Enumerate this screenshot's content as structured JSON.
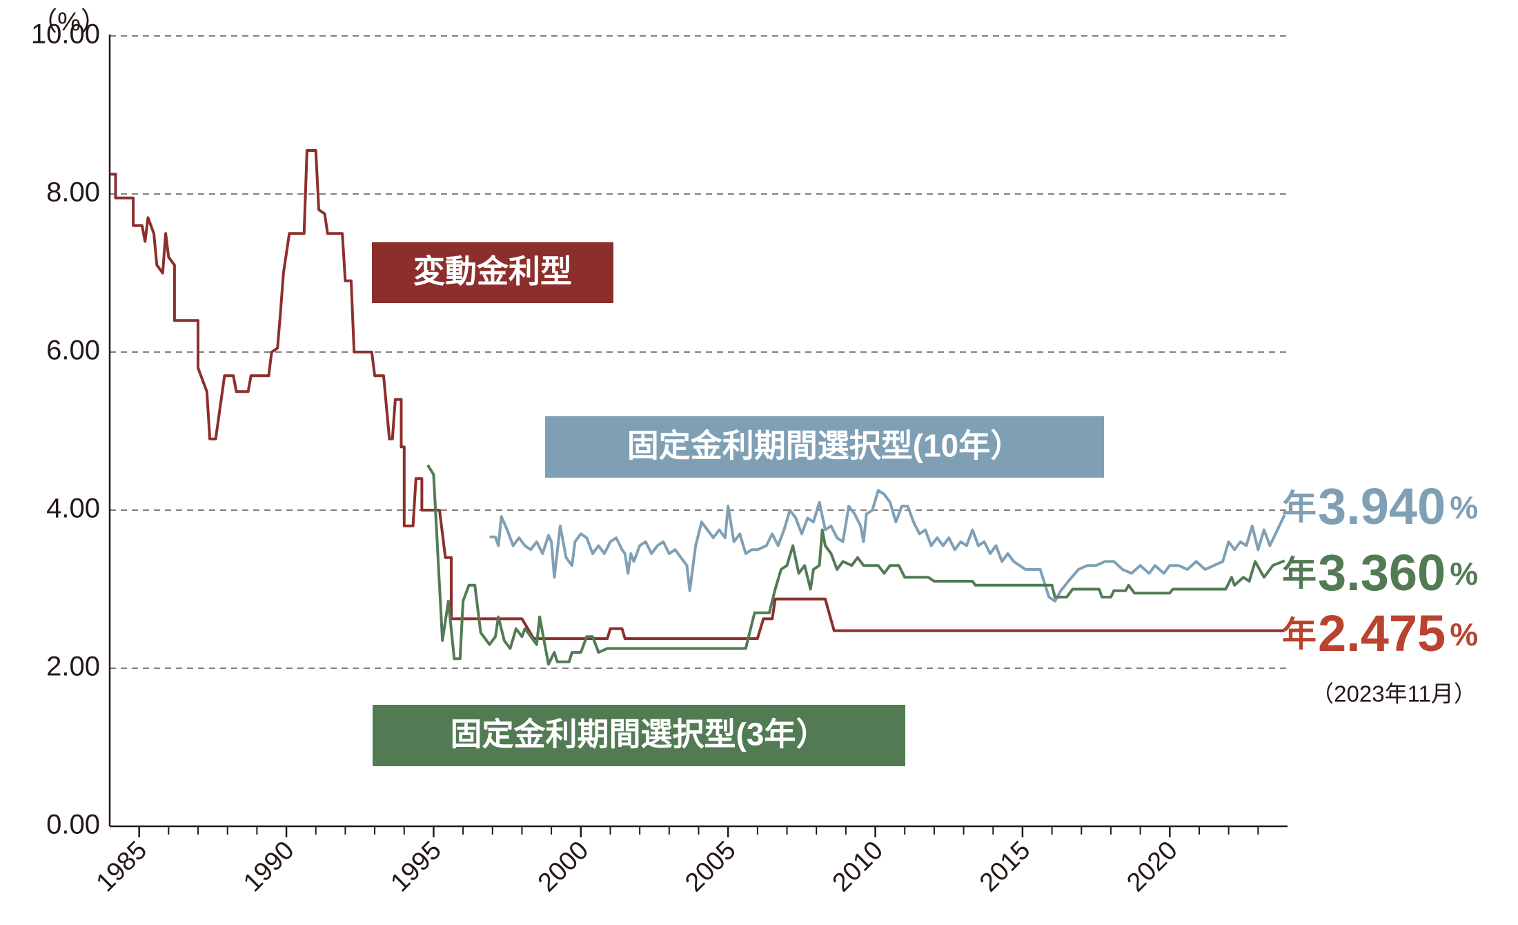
{
  "chart_data": {
    "type": "line",
    "y_unit": "（%）",
    "note": "（2023年11月）",
    "xlim": [
      1984,
      2024
    ],
    "xticks": [
      1985,
      1990,
      1995,
      2000,
      2005,
      2010,
      2015,
      2020
    ],
    "minor_xticks": [
      1985,
      1986,
      1987,
      1988,
      1989,
      1990,
      1991,
      1992,
      1993,
      1994,
      1995,
      1996,
      1997,
      1998,
      1999,
      2000,
      2001,
      2002,
      2003,
      2004,
      2005,
      2006,
      2007,
      2008,
      2009,
      2010,
      2011,
      2012,
      2013,
      2014,
      2015,
      2016,
      2017,
      2018,
      2019,
      2020,
      2021,
      2022,
      2023
    ],
    "ylim": [
      0,
      10
    ],
    "yticks": [
      {
        "value": 0,
        "label": "0.00"
      },
      {
        "value": 2,
        "label": "2.00"
      },
      {
        "value": 4,
        "label": "4.00"
      },
      {
        "value": 6,
        "label": "6.00"
      },
      {
        "value": 8,
        "label": "8.00"
      },
      {
        "value": 10,
        "label": "10.00"
      }
    ],
    "grid": true,
    "series": [
      {
        "name": "変動金利型",
        "color": "#8c2f2b",
        "label_color": "#b9432f",
        "end_label": {
          "prefix": "年",
          "text": "2.475",
          "suffix": "%"
        },
        "x": [
          1984.0,
          1984.2,
          1984.2,
          1984.8,
          1984.8,
          1985.1,
          1985.2,
          1985.3,
          1985.5,
          1985.6,
          1985.8,
          1985.9,
          1986.0,
          1986.2,
          1986.2,
          1987.0,
          1987.0,
          1987.3,
          1987.4,
          1987.6,
          1987.9,
          1988.2,
          1988.3,
          1988.7,
          1988.8,
          1989.4,
          1989.5,
          1989.7,
          1989.8,
          1989.9,
          1990.1,
          1990.6,
          1990.7,
          1991.0,
          1991.1,
          1991.3,
          1991.4,
          1991.9,
          1992.0,
          1992.2,
          1992.3,
          1992.9,
          1993.0,
          1993.3,
          1993.5,
          1993.6,
          1993.7,
          1993.9,
          1993.9,
          1994.0,
          1994.0,
          1994.3,
          1994.4,
          1994.6,
          1994.6,
          1995.2,
          1995.4,
          1995.6,
          1995.6,
          1998.0,
          1998.2,
          1998.4,
          2000.9,
          2001.0,
          2001.4,
          2001.5,
          2006.0,
          2006.2,
          2006.5,
          2006.6,
          2008.3,
          2008.6,
          2023.9
        ],
        "values": [
          8.25,
          8.25,
          7.95,
          7.95,
          7.6,
          7.6,
          7.4,
          7.7,
          7.5,
          7.1,
          7.0,
          7.5,
          7.2,
          7.1,
          6.4,
          6.4,
          5.8,
          5.5,
          4.9,
          4.9,
          5.7,
          5.7,
          5.5,
          5.5,
          5.7,
          5.7,
          6.0,
          6.05,
          6.5,
          7.0,
          7.5,
          7.5,
          8.55,
          8.55,
          7.8,
          7.75,
          7.5,
          7.5,
          6.9,
          6.9,
          6.0,
          6.0,
          5.7,
          5.7,
          4.9,
          4.9,
          5.4,
          5.4,
          4.8,
          4.8,
          3.8,
          3.8,
          4.4,
          4.4,
          4.0,
          4.0,
          3.4,
          3.4,
          2.625,
          2.625,
          2.5,
          2.375,
          2.375,
          2.5,
          2.5,
          2.375,
          2.375,
          2.625,
          2.625,
          2.875,
          2.875,
          2.475,
          2.475
        ]
      },
      {
        "name": "固定金利期間選択型(10年）",
        "color": "#7f9fb5",
        "label_color": "#7f9fb5",
        "end_label": {
          "prefix": "年",
          "text": "3.940",
          "suffix": "%"
        },
        "x": [
          1996.9,
          1997.1,
          1997.2,
          1997.3,
          1997.5,
          1997.7,
          1997.9,
          1998.1,
          1998.3,
          1998.5,
          1998.7,
          1998.9,
          1999.0,
          1999.1,
          1999.3,
          1999.5,
          1999.7,
          1999.8,
          2000.0,
          2000.2,
          2000.4,
          2000.6,
          2000.8,
          2001.0,
          2001.2,
          2001.4,
          2001.5,
          2001.6,
          2001.7,
          2001.8,
          2002.0,
          2002.2,
          2002.4,
          2002.6,
          2002.8,
          2003.0,
          2003.2,
          2003.4,
          2003.6,
          2003.7,
          2003.9,
          2004.1,
          2004.3,
          2004.5,
          2004.7,
          2004.9,
          2005.0,
          2005.2,
          2005.4,
          2005.6,
          2005.8,
          2006.0,
          2006.3,
          2006.5,
          2006.7,
          2006.9,
          2007.1,
          2007.3,
          2007.5,
          2007.7,
          2007.9,
          2008.1,
          2008.3,
          2008.5,
          2008.7,
          2008.9,
          2009.1,
          2009.3,
          2009.5,
          2009.6,
          2009.7,
          2009.9,
          2010.1,
          2010.3,
          2010.5,
          2010.7,
          2010.9,
          2011.1,
          2011.3,
          2011.5,
          2011.7,
          2011.9,
          2012.1,
          2012.3,
          2012.5,
          2012.7,
          2012.9,
          2013.1,
          2013.3,
          2013.5,
          2013.7,
          2013.9,
          2014.1,
          2014.3,
          2014.5,
          2014.7,
          2014.9,
          2015.1,
          2015.3,
          2015.6,
          2015.9,
          2016.1,
          2016.3,
          2016.6,
          2016.9,
          2017.2,
          2017.5,
          2017.8,
          2018.1,
          2018.4,
          2018.7,
          2019.0,
          2019.3,
          2019.5,
          2019.8,
          2020.0,
          2020.3,
          2020.6,
          2020.9,
          2021.2,
          2021.5,
          2021.8,
          2022.0,
          2022.2,
          2022.4,
          2022.6,
          2022.8,
          2023.0,
          2023.2,
          2023.4,
          2023.9
        ],
        "values": [
          3.66,
          3.66,
          3.55,
          3.92,
          3.75,
          3.55,
          3.65,
          3.55,
          3.5,
          3.6,
          3.45,
          3.68,
          3.6,
          3.15,
          3.8,
          3.4,
          3.3,
          3.6,
          3.7,
          3.65,
          3.45,
          3.55,
          3.45,
          3.6,
          3.65,
          3.5,
          3.45,
          3.2,
          3.45,
          3.35,
          3.55,
          3.6,
          3.45,
          3.55,
          3.6,
          3.45,
          3.5,
          3.4,
          3.3,
          2.98,
          3.55,
          3.85,
          3.75,
          3.65,
          3.75,
          3.65,
          4.05,
          3.6,
          3.7,
          3.45,
          3.5,
          3.5,
          3.55,
          3.7,
          3.55,
          3.75,
          4.0,
          3.9,
          3.7,
          3.9,
          3.85,
          4.1,
          3.75,
          3.8,
          3.65,
          3.6,
          4.05,
          3.95,
          3.8,
          3.6,
          3.95,
          4.0,
          4.25,
          4.2,
          4.1,
          3.85,
          4.05,
          4.05,
          3.85,
          3.7,
          3.75,
          3.55,
          3.65,
          3.55,
          3.65,
          3.5,
          3.6,
          3.55,
          3.75,
          3.55,
          3.6,
          3.45,
          3.55,
          3.35,
          3.45,
          3.35,
          3.3,
          3.25,
          3.25,
          3.25,
          2.9,
          2.85,
          2.98,
          3.12,
          3.25,
          3.3,
          3.3,
          3.35,
          3.35,
          3.25,
          3.2,
          3.3,
          3.2,
          3.3,
          3.2,
          3.3,
          3.3,
          3.25,
          3.35,
          3.25,
          3.3,
          3.35,
          3.6,
          3.5,
          3.6,
          3.55,
          3.8,
          3.5,
          3.75,
          3.55,
          3.94
        ]
      },
      {
        "name": "固定金利期間選択型(3年）",
        "color": "#527b54",
        "label_color": "#527b54",
        "end_label": {
          "prefix": "年",
          "text": "3.360",
          "suffix": "%"
        },
        "x": [
          1994.8,
          1995.0,
          1995.3,
          1995.5,
          1995.7,
          1995.9,
          1996.0,
          1996.2,
          1996.4,
          1996.6,
          1996.9,
          1997.1,
          1997.2,
          1997.4,
          1997.6,
          1997.8,
          1998.0,
          1998.1,
          1998.3,
          1998.5,
          1998.6,
          1998.8,
          1998.9,
          1999.1,
          1999.2,
          1999.6,
          1999.7,
          2000.0,
          2000.2,
          2000.4,
          2000.6,
          2000.9,
          2001.3,
          2005.6,
          2005.8,
          2005.9,
          2006.4,
          2006.6,
          2006.8,
          2007.0,
          2007.2,
          2007.4,
          2007.6,
          2007.8,
          2007.9,
          2008.1,
          2008.2,
          2008.3,
          2008.5,
          2008.7,
          2008.9,
          2009.2,
          2009.4,
          2009.6,
          2010.1,
          2010.3,
          2010.5,
          2010.8,
          2011.0,
          2011.8,
          2012.0,
          2013.3,
          2013.4,
          2016.0,
          2016.1,
          2016.5,
          2016.7,
          2017.6,
          2017.7,
          2018.0,
          2018.1,
          2018.5,
          2018.6,
          2018.8,
          2020.0,
          2020.1,
          2021.9,
          2022.1,
          2022.2,
          2022.5,
          2022.7,
          2022.9,
          2023.2,
          2023.5,
          2023.9
        ],
        "values": [
          4.57,
          4.45,
          2.35,
          2.85,
          2.12,
          2.12,
          2.85,
          3.05,
          3.05,
          2.45,
          2.3,
          2.4,
          2.65,
          2.35,
          2.25,
          2.5,
          2.4,
          2.5,
          2.4,
          2.3,
          2.65,
          2.25,
          2.05,
          2.2,
          2.08,
          2.08,
          2.2,
          2.2,
          2.4,
          2.4,
          2.2,
          2.25,
          2.25,
          2.25,
          2.55,
          2.7,
          2.7,
          3.0,
          3.25,
          3.3,
          3.55,
          3.2,
          3.3,
          3.0,
          3.25,
          3.3,
          3.75,
          3.55,
          3.45,
          3.25,
          3.35,
          3.3,
          3.4,
          3.3,
          3.3,
          3.2,
          3.3,
          3.3,
          3.15,
          3.15,
          3.1,
          3.1,
          3.05,
          3.05,
          2.9,
          2.9,
          3.0,
          3.0,
          2.9,
          2.9,
          2.98,
          2.98,
          3.05,
          2.95,
          2.95,
          3.0,
          3.0,
          3.15,
          3.05,
          3.15,
          3.1,
          3.35,
          3.15,
          3.3,
          3.36
        ]
      }
    ]
  }
}
